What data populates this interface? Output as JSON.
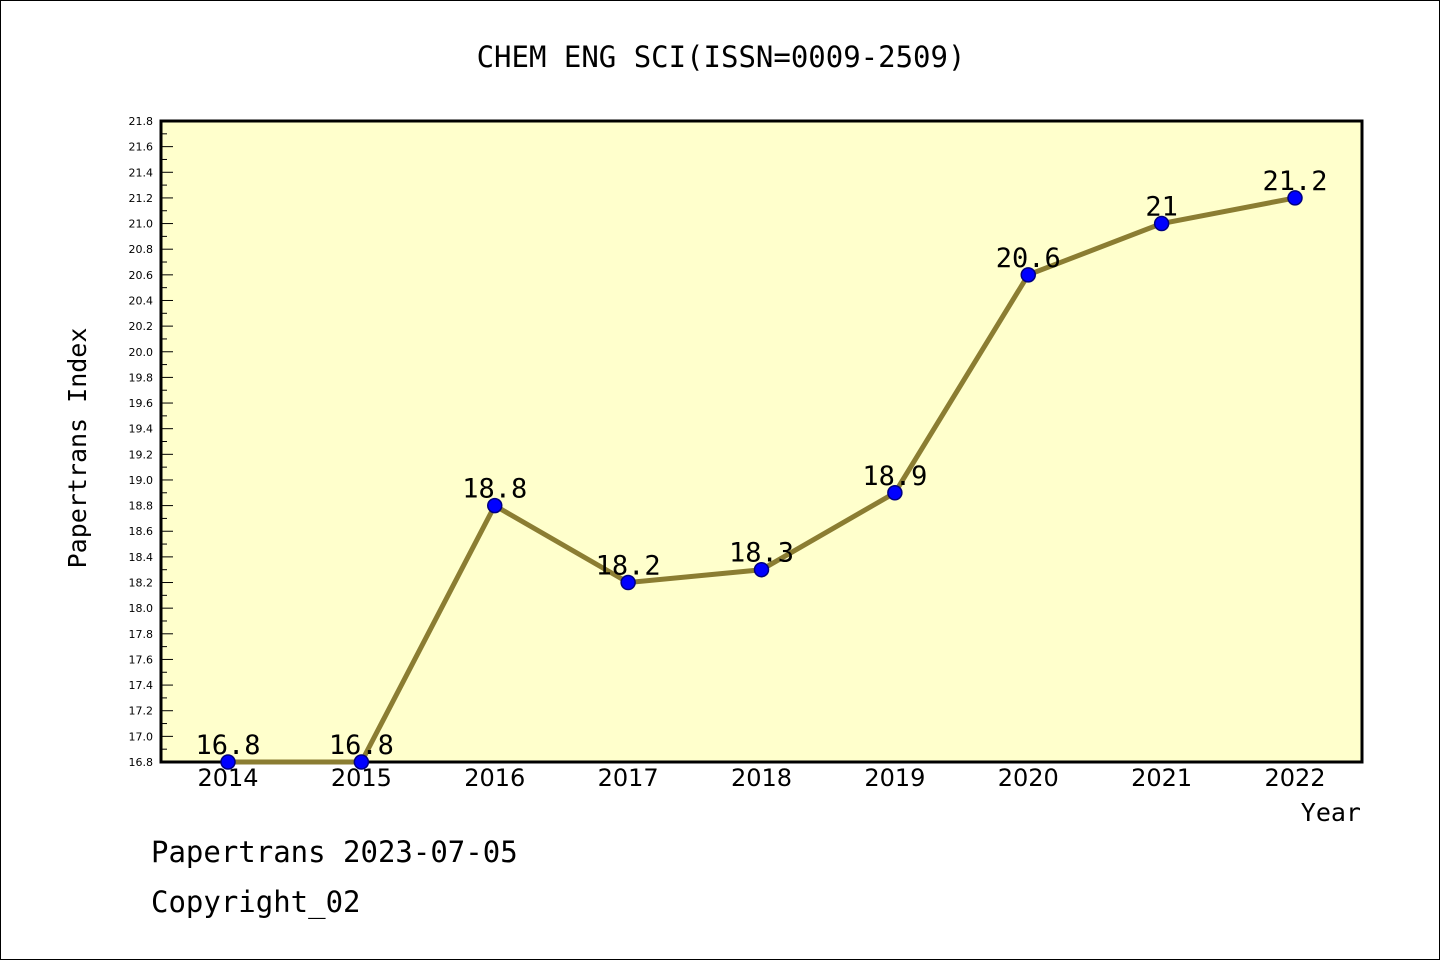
{
  "colors": {
    "plot_background": "#ffffcc",
    "line": "#8b7d32",
    "marker_fill": "#0000ff",
    "marker_stroke": "#000080",
    "text": "#000000"
  },
  "chart_data": {
    "type": "line",
    "title": "CHEM ENG SCI(ISSN=0009-2509)",
    "xlabel": "Year",
    "ylabel": "Papertrans Index",
    "categories": [
      "2014",
      "2015",
      "2016",
      "2017",
      "2018",
      "2019",
      "2020",
      "2021",
      "2022"
    ],
    "series": [
      {
        "values": [
          16.8,
          16.8,
          18.8,
          18.2,
          18.3,
          18.9,
          20.6,
          21.0,
          21.2
        ],
        "labels": [
          "16.8",
          "16.8",
          "18.8",
          "18.2",
          "18.3",
          "18.9",
          "20.6",
          "21",
          "21.2"
        ]
      }
    ],
    "ylim": [
      16.8,
      21.8
    ],
    "y_ticks": [
      "16.8",
      "17.0",
      "17.2",
      "17.4",
      "17.6",
      "17.8",
      "18.0",
      "18.2",
      "18.4",
      "18.6",
      "18.8",
      "19.0",
      "19.2",
      "19.4",
      "19.6",
      "19.8",
      "20.0",
      "20.2",
      "20.4",
      "20.6",
      "20.8",
      "21.0",
      "21.2",
      "21.4",
      "21.6",
      "21.8"
    ],
    "grid": false,
    "legend": "none"
  },
  "footer": {
    "line1": "Papertrans 2023-07-05",
    "line2": "Copyright_02"
  }
}
